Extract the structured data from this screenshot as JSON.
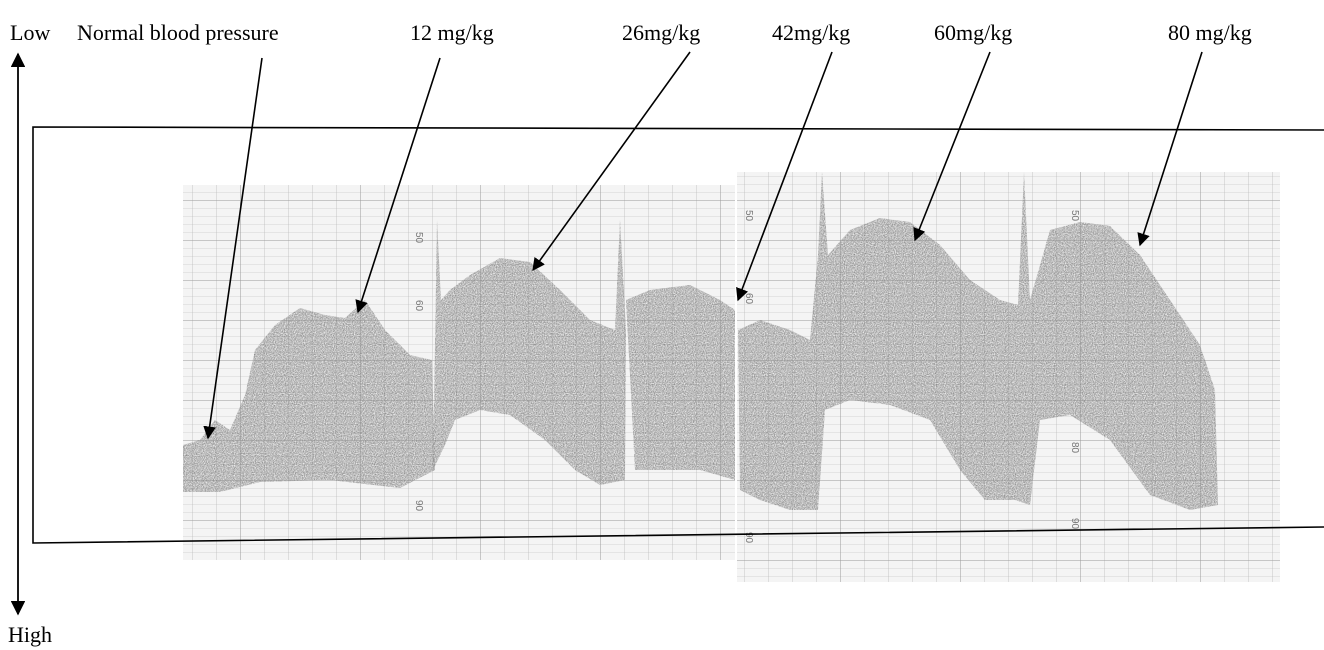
{
  "axis_labels": {
    "low": "Low",
    "high": "High"
  },
  "annotations": [
    {
      "label": "Normal blood pressure"
    },
    {
      "label": "12 mg/kg"
    },
    {
      "label": "26mg/kg"
    },
    {
      "label": "42mg/kg"
    },
    {
      "label": "60mg/kg"
    },
    {
      "label": "80 mg/kg"
    }
  ],
  "paper_scale_labels": [
    "50",
    "60",
    "90",
    "50",
    "60",
    "90",
    "50",
    "80",
    "90"
  ]
}
